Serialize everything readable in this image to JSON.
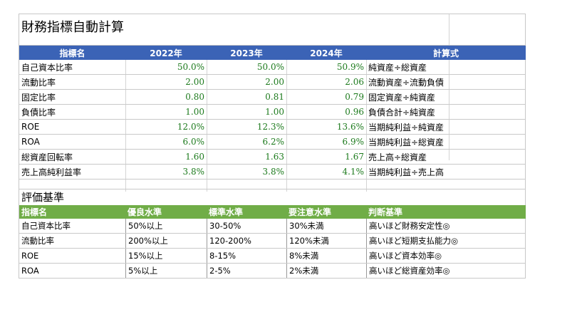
{
  "title": "財務指標自動計算",
  "metrics_table": {
    "headers": [
      "指標名",
      "2022年",
      "2023年",
      "2024年",
      "計算式"
    ],
    "rows": [
      {
        "name": "自己資本比率",
        "v2022": "50.0%",
        "v2023": "50.0%",
        "v2024": "50.9%",
        "formula": "純資産÷総資産"
      },
      {
        "name": "流動比率",
        "v2022": "2.00",
        "v2023": "2.00",
        "v2024": "2.06",
        "formula": "流動資産÷流動負債"
      },
      {
        "name": "固定比率",
        "v2022": "0.80",
        "v2023": "0.81",
        "v2024": "0.79",
        "formula": "固定資産÷純資産"
      },
      {
        "name": "負債比率",
        "v2022": "1.00",
        "v2023": "1.00",
        "v2024": "0.96",
        "formula": "負債合計÷純資産"
      },
      {
        "name": "ROE",
        "v2022": "12.0%",
        "v2023": "12.3%",
        "v2024": "13.6%",
        "formula": "当期純利益÷純資産"
      },
      {
        "name": "ROA",
        "v2022": "6.0%",
        "v2023": "6.2%",
        "v2024": "6.9%",
        "formula": "当期純利益÷総資産"
      },
      {
        "name": "総資産回転率",
        "v2022": "1.60",
        "v2023": "1.63",
        "v2024": "1.67",
        "formula": "売上高÷総資産"
      },
      {
        "name": "売上高純利益率",
        "v2022": "3.8%",
        "v2023": "3.8%",
        "v2024": "4.1%",
        "formula": "当期純利益÷売上高"
      }
    ]
  },
  "criteria_section": {
    "title": "評価基準",
    "headers": [
      "指標名",
      "優良水準",
      "標準水準",
      "要注意水準",
      "判断基準"
    ],
    "rows": [
      {
        "name": "自己資本比率",
        "good": "50%以上",
        "standard": "30-50%",
        "caution": "30%未満",
        "judgement": "高いほど財務安定性◎"
      },
      {
        "name": "流動比率",
        "good": "200%以上",
        "standard": "120-200%",
        "caution": "120%未満",
        "judgement": "高いほど短期支払能力◎"
      },
      {
        "name": "ROE",
        "good": "15%以上",
        "standard": "8-15%",
        "caution": "8%未満",
        "judgement": "高いほど資本効率◎"
      },
      {
        "name": "ROA",
        "good": "5%以上",
        "standard": "2-5%",
        "caution": "2%未満",
        "judgement": "高いほど総資産効率◎"
      }
    ]
  },
  "colors": {
    "header_blue": "#3b63b6",
    "header_green": "#70ad47",
    "value_green": "#1c7a1c"
  }
}
